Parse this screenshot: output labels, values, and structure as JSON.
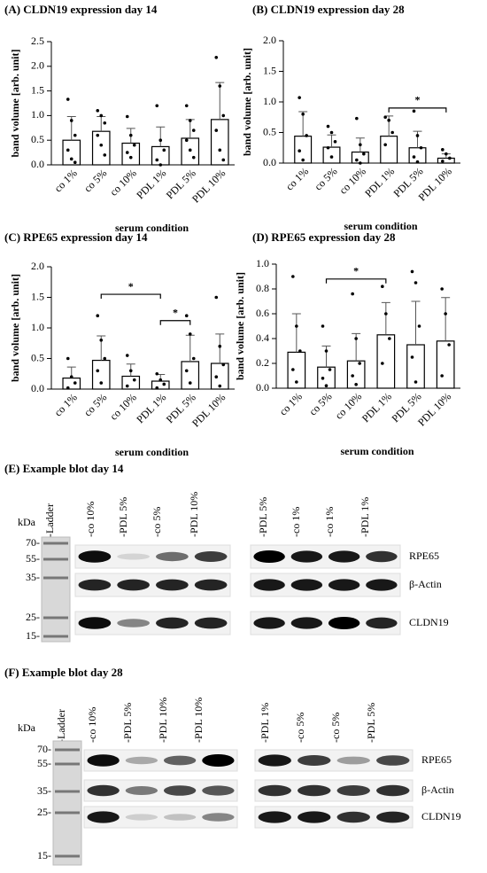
{
  "chart_data": [
    {
      "type": "bar",
      "title": "(A) CLDN19 expression day 14",
      "x_label": "serum condition",
      "y_label": "band volume [arb. unit]",
      "categories": [
        "co 1%",
        "co 5%",
        "co 10%",
        "PDL 1%",
        "PDL 5%",
        "PDL 10%"
      ],
      "values": [
        0.5,
        0.68,
        0.44,
        0.37,
        0.54,
        0.92
      ],
      "errors": [
        0.48,
        0.3,
        0.3,
        0.4,
        0.38,
        0.75
      ],
      "points": [
        [
          1.33,
          0.9,
          0.6,
          0.3,
          0.12,
          0.05
        ],
        [
          1.1,
          1.0,
          0.85,
          0.6,
          0.4,
          0.2
        ],
        [
          0.98,
          0.6,
          0.4,
          0.25,
          0.15
        ],
        [
          1.2,
          0.5,
          0.3,
          0.1,
          0.0
        ],
        [
          1.2,
          0.9,
          0.7,
          0.5,
          0.3,
          0.15
        ],
        [
          2.18,
          1.6,
          1.0,
          0.7,
          0.3,
          0.1
        ]
      ],
      "ylim": [
        0,
        2.5
      ],
      "yticks": [
        {
          "value": 0,
          "label": "0.0"
        },
        0.5,
        {
          "value": 1,
          "label": "1.0"
        },
        1.5,
        {
          "value": 2,
          "label": "2.0"
        },
        2.5
      ],
      "significance": []
    },
    {
      "type": "bar",
      "title": "(B) CLDN19 expression day 28",
      "x_label": "serum condition",
      "y_label": "band volume [arb. unit]",
      "categories": [
        "co 1%",
        "co 5%",
        "co 10%",
        "PDL 1%",
        "PDL 5%",
        "PDL 10%"
      ],
      "values": [
        0.44,
        0.26,
        0.18,
        0.44,
        0.25,
        0.08
      ],
      "errors": [
        0.4,
        0.2,
        0.23,
        0.33,
        0.27,
        0.07
      ],
      "points": [
        [
          1.07,
          0.8,
          0.45,
          0.2,
          0.05
        ],
        [
          0.6,
          0.5,
          0.35,
          0.25,
          0.1
        ],
        [
          0.73,
          0.3,
          0.15,
          0.05,
          0.0
        ],
        [
          0.75,
          0.7,
          0.5,
          0.3
        ],
        [
          0.85,
          0.45,
          0.25,
          0.1,
          0.02
        ],
        [
          0.22,
          0.15,
          0.08,
          0.03
        ]
      ],
      "ylim": [
        0,
        2
      ],
      "yticks": [
        {
          "value": 0,
          "label": "0.0"
        },
        0.5,
        {
          "value": 1,
          "label": "1.0"
        },
        1.5,
        {
          "value": 2,
          "label": "2.0"
        }
      ],
      "significance": [
        {
          "from": 3,
          "to": 5,
          "level": 0.9,
          "label": "*"
        }
      ]
    },
    {
      "type": "bar",
      "title": "(C) RPE65 expression day 14",
      "x_label": "serum condition",
      "y_label": "band volume [arb. unit]",
      "categories": [
        "co 1%",
        "co 5%",
        "co 10%",
        "PDL 1%",
        "PDL 5%",
        "PDL 10%"
      ],
      "values": [
        0.18,
        0.47,
        0.21,
        0.13,
        0.45,
        0.42
      ],
      "errors": [
        0.18,
        0.4,
        0.2,
        0.11,
        0.43,
        0.48
      ],
      "points": [
        [
          0.5,
          0.2,
          0.1,
          0.02
        ],
        [
          1.2,
          0.8,
          0.5,
          0.3,
          0.1
        ],
        [
          0.55,
          0.3,
          0.15,
          0.05
        ],
        [
          0.25,
          0.15,
          0.08,
          0.02
        ],
        [
          1.2,
          0.9,
          0.5,
          0.3,
          0.1
        ],
        [
          1.5,
          0.7,
          0.4,
          0.2,
          0.05
        ]
      ],
      "ylim": [
        0,
        2
      ],
      "yticks": [
        {
          "value": 0,
          "label": "0.0"
        },
        0.5,
        {
          "value": 1,
          "label": "1.0"
        },
        1.5,
        {
          "value": 2,
          "label": "2.0"
        }
      ],
      "significance": [
        {
          "from": 1,
          "to": 3,
          "level": 1.55,
          "label": "*"
        },
        {
          "from": 3,
          "to": 4,
          "level": 1.12,
          "label": "*"
        }
      ]
    },
    {
      "type": "bar",
      "title": "(D) RPE65 expression day 28",
      "x_label": "serum condition",
      "y_label": "band volume [arb. unit]",
      "categories": [
        "co 1%",
        "co 5%",
        "co 10%",
        "PDL 1%",
        "PDL 5%",
        "PDL 10%"
      ],
      "values": [
        0.29,
        0.17,
        0.22,
        0.43,
        0.35,
        0.38
      ],
      "errors": [
        0.31,
        0.17,
        0.22,
        0.26,
        0.35,
        0.35
      ],
      "points": [
        [
          0.9,
          0.5,
          0.3,
          0.15,
          0.05
        ],
        [
          0.5,
          0.3,
          0.15,
          0.08,
          0.02
        ],
        [
          0.76,
          0.4,
          0.2,
          0.1,
          0.03
        ],
        [
          0.82,
          0.6,
          0.4,
          0.2
        ],
        [
          0.94,
          0.85,
          0.5,
          0.25,
          0.05
        ],
        [
          0.8,
          0.6,
          0.35,
          0.1
        ]
      ],
      "ylim": [
        0,
        1
      ],
      "yticks": [
        {
          "value": 0,
          "label": "0.0"
        },
        0.2,
        0.4,
        0.6,
        0.8,
        {
          "value": 1,
          "label": "1.0"
        }
      ],
      "significance": [
        {
          "from": 1,
          "to": 3,
          "level": 0.88,
          "label": "*"
        }
      ]
    }
  ],
  "blots": [
    {
      "title": "(E) Example blot day 14",
      "unit": "kDa",
      "lanes": [
        "-Ladder",
        "-co 10%",
        "-PDL 5%",
        "-co 5%",
        "-PDL 10%",
        "-PDL 5%",
        "-co 1%",
        "-co 1%",
        "-PDL 1%"
      ],
      "markers": [
        "70-",
        "55-",
        "35-",
        "25-",
        "15-"
      ],
      "proteins": [
        "RPE65",
        "β-Actin",
        "CLDN19"
      ]
    },
    {
      "title": "(F) Example blot day 28",
      "unit": "kDa",
      "lanes": [
        "-Ladder",
        "-co 10%",
        "-PDL 5%",
        "-PDL 10%",
        "-PDL 10%",
        "-PDL 1%",
        "-co 5%",
        "-co 5%",
        "-PDL 5%"
      ],
      "markers": [
        "70-",
        "55-",
        "35-",
        "25-",
        "15-"
      ],
      "proteins": [
        "RPE65",
        "β-Actin",
        "CLDN19"
      ]
    }
  ]
}
